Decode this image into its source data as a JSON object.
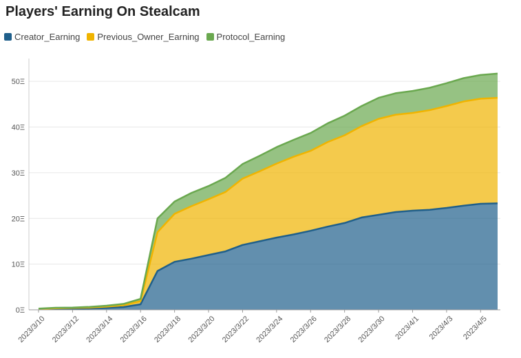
{
  "chart_data": {
    "type": "area",
    "stacked": true,
    "title": "Players' Earning On Stealcam",
    "legend_position": "top-left",
    "grid": true,
    "ylim": [
      0,
      55
    ],
    "y_ticks": [
      0,
      10,
      20,
      30,
      40,
      50
    ],
    "y_tick_labels": [
      "0Ξ",
      "10Ξ",
      "20Ξ",
      "30Ξ",
      "40Ξ",
      "50Ξ"
    ],
    "x_tick_labels": [
      "2023/3/10",
      "2023/3/12",
      "2023/3/14",
      "2023/3/16",
      "2023/3/18",
      "2023/3/20",
      "2023/3/22",
      "2023/3/24",
      "2023/3/26",
      "2023/3/28",
      "2023/3/30",
      "2023/4/1",
      "2023/4/3",
      "2023/4/5"
    ],
    "x": [
      "2023/3/10",
      "2023/3/11",
      "2023/3/12",
      "2023/3/13",
      "2023/3/14",
      "2023/3/15",
      "2023/3/16",
      "2023/3/17",
      "2023/3/18",
      "2023/3/19",
      "2023/3/20",
      "2023/3/21",
      "2023/3/22",
      "2023/3/23",
      "2023/3/24",
      "2023/3/25",
      "2023/3/26",
      "2023/3/27",
      "2023/3/28",
      "2023/3/29",
      "2023/3/30",
      "2023/3/31",
      "2023/4/1",
      "2023/4/2",
      "2023/4/3",
      "2023/4/4",
      "2023/4/5",
      "2023/4/6"
    ],
    "series": [
      {
        "name": "Creator_Earning",
        "color": "#1f5f8b",
        "values": [
          0.1,
          0.2,
          0.2,
          0.3,
          0.4,
          0.6,
          1.2,
          8.5,
          10.5,
          11.2,
          12.0,
          12.8,
          14.2,
          15.0,
          15.8,
          16.5,
          17.3,
          18.2,
          19.0,
          20.2,
          20.8,
          21.4,
          21.7,
          21.9,
          22.3,
          22.8,
          23.2,
          23.3
        ]
      },
      {
        "name": "Previous_Owner_Earning",
        "color": "#f0b400",
        "values": [
          0.1,
          0.15,
          0.2,
          0.2,
          0.3,
          0.4,
          0.7,
          8.5,
          10.5,
          11.5,
          12.2,
          13.0,
          14.5,
          15.3,
          16.2,
          17.0,
          17.5,
          18.5,
          19.2,
          20.0,
          21.0,
          21.3,
          21.4,
          21.8,
          22.3,
          22.8,
          23.0,
          23.1
        ]
      },
      {
        "name": "Protocol_Earning",
        "color": "#6aa84f",
        "values": [
          0.05,
          0.1,
          0.1,
          0.15,
          0.2,
          0.3,
          0.5,
          3.0,
          2.7,
          2.9,
          2.9,
          3.1,
          3.2,
          3.4,
          3.6,
          3.7,
          3.9,
          4.1,
          4.3,
          4.4,
          4.6,
          4.7,
          4.8,
          4.9,
          5.0,
          5.1,
          5.2,
          5.3
        ]
      }
    ]
  }
}
